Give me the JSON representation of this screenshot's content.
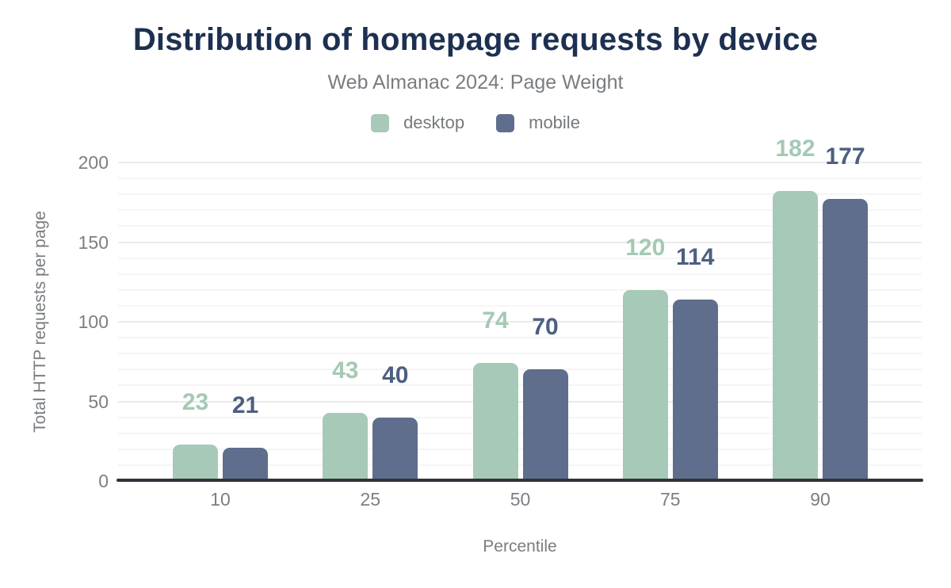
{
  "header": {
    "title": "Distribution of homepage requests by device",
    "subtitle": "Web Almanac 2024: Page Weight"
  },
  "chart_data": {
    "type": "bar",
    "title": "Distribution of homepage requests by device",
    "subtitle": "Web Almanac 2024: Page Weight",
    "categories": [
      "10",
      "25",
      "50",
      "75",
      "90"
    ],
    "series": [
      {
        "name": "desktop",
        "values": [
          23,
          43,
          74,
          120,
          182
        ],
        "color": "#a7c9b8",
        "label_color": "#a4c9b4"
      },
      {
        "name": "mobile",
        "values": [
          21,
          40,
          70,
          114,
          177
        ],
        "color": "#5e6e8c",
        "label_color": "#4d5f80"
      }
    ],
    "xlabel": "Percentile",
    "ylabel": "Total HTTP requests per page",
    "ylim": [
      0,
      200
    ],
    "yticks": [
      0,
      50,
      100,
      150,
      200
    ],
    "grid": {
      "show": true,
      "minor_step": 10,
      "major_step": 50
    },
    "legend_position": "top",
    "data_labels": true
  },
  "colors": {
    "title": "#1d3051",
    "subtitle": "#797d81",
    "legend_text": "#75797d",
    "tick": "#7b7f83",
    "axis_title": "#797d81",
    "axis_line": "#303339",
    "grid_minor": "#f5f5f6",
    "grid_major": "#ebebec",
    "background": "#ffffff"
  }
}
